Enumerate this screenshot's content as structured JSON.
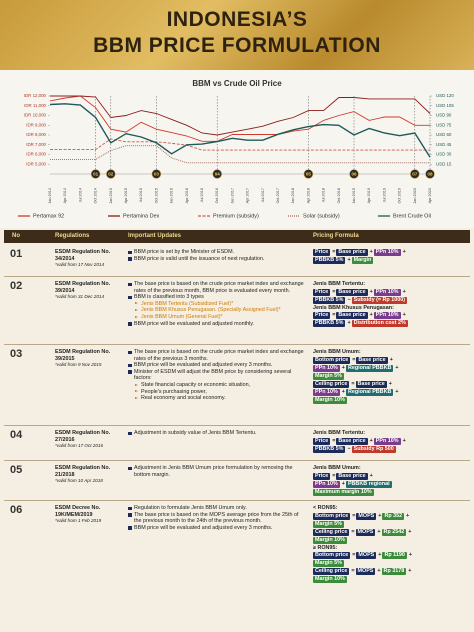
{
  "header": {
    "title_line1": "INDONESIA’S",
    "title_line2": "BBM PRICE FORMULATION"
  },
  "chart_data": {
    "type": "line",
    "title": "BBM vs Crude Oil Price",
    "categories": [
      "Jan 2014",
      "Apr 2014",
      "Jul 2014",
      "Oct 2014",
      "Jan 2015",
      "Apr 2015",
      "Jul 2015",
      "Oct 2015",
      "Jan 2016",
      "Apr 2016",
      "Jul 2016",
      "Oct 2016",
      "Jan 2017",
      "Apr 2017",
      "Jul 2017",
      "Oct 2017",
      "Jan 2018",
      "Apr 2018",
      "Jul 2018",
      "Oct 2018",
      "Jan 2019",
      "Apr 2019",
      "Jul 2019",
      "Oct 2019",
      "Jan 2020",
      "Apr 2020"
    ],
    "series": [
      {
        "name": "Pertamax 92",
        "color": "#d23a2c",
        "dash": "solid",
        "values": [
          11500,
          11800,
          12000,
          10800,
          8600,
          8300,
          9300,
          8600,
          8250,
          7900,
          7350,
          7350,
          8050,
          8050,
          8050,
          8050,
          8400,
          8600,
          9500,
          10000,
          10400,
          9500,
          9850,
          9850,
          9000,
          9000
        ]
      },
      {
        "name": "Pertamina Dex",
        "color": "#8a1c1c",
        "dash": "solid",
        "values": [
          12000,
          12000,
          12000,
          11900,
          9800,
          10000,
          10500,
          10200,
          9600,
          9000,
          8200,
          8000,
          8300,
          8600,
          8900,
          9400,
          9800,
          10500,
          10500,
          11850,
          11850,
          11700,
          11700,
          11700,
          11700,
          10200
        ]
      },
      {
        "name": "Premium (subsidy)",
        "color": "#c85a50",
        "dash": "dashed",
        "values": [
          6500,
          6500,
          6500,
          6500,
          7600,
          7300,
          7300,
          7300,
          7150,
          6950,
          6450,
          6450,
          6450,
          6450,
          6450,
          6450,
          6450,
          6450,
          6450,
          6450,
          6450,
          6450,
          6450,
          6450,
          6450,
          6450
        ]
      },
      {
        "name": "Solar (subsidy)",
        "color": "#a8605a",
        "dash": "dotted",
        "values": [
          5500,
          5500,
          5500,
          5500,
          6400,
          6900,
          6900,
          6900,
          5650,
          5150,
          5150,
          5150,
          5150,
          5150,
          5150,
          5150,
          5150,
          5150,
          5150,
          5150,
          5150,
          5150,
          5150,
          5150,
          5150,
          5150
        ]
      },
      {
        "name": "Brent Crude Oil",
        "color": "#1d5a5a",
        "dash": "solid",
        "axis": "y2",
        "values": [
          107,
          108,
          106,
          87,
          48,
          62,
          57,
          48,
          31,
          45,
          46,
          50,
          55,
          52,
          52,
          61,
          68,
          73,
          76,
          75,
          60,
          70,
          63,
          59,
          63,
          26
        ]
      }
    ],
    "ylim": [
      4000,
      12000
    ],
    "yticks": [
      {
        "value": 12000,
        "label": "IDR 12,000"
      },
      {
        "value": 11000,
        "label": "IDR 11,000"
      },
      {
        "value": 10000,
        "label": "IDR 10,000"
      },
      {
        "value": 9000,
        "label": "IDR 9,000"
      },
      {
        "value": 8000,
        "label": "IDR 8,000"
      },
      {
        "value": 7000,
        "label": "IDR 7,000"
      },
      {
        "value": 6000,
        "label": "IDR 6,000"
      },
      {
        "value": 5000,
        "label": "IDR 5,000"
      }
    ],
    "y2lim": [
      0,
      120
    ],
    "y2ticks": [
      {
        "value": 120,
        "label": "USD 120"
      },
      {
        "value": 105,
        "label": "USD 105"
      },
      {
        "value": 90,
        "label": "USD 90"
      },
      {
        "value": 75,
        "label": "USD 75"
      },
      {
        "value": 60,
        "label": "USD 60"
      },
      {
        "value": 45,
        "label": "USD 45"
      },
      {
        "value": 30,
        "label": "USD 30"
      },
      {
        "value": 15,
        "label": "USD 15"
      }
    ],
    "markers": [
      {
        "label": "01",
        "x": "Oct 2014"
      },
      {
        "label": "02",
        "x": "Jan 2015"
      },
      {
        "label": "03",
        "x": "Oct 2015"
      },
      {
        "label": "04",
        "x": "Oct 2016"
      },
      {
        "label": "05",
        "x": "Apr 2018"
      },
      {
        "label": "06",
        "x": "Jan 2019"
      },
      {
        "label": "07",
        "x": "Jan 2020"
      },
      {
        "label": "08",
        "x": "Apr 2020"
      }
    ],
    "grid": false,
    "legend": "bottom"
  },
  "table": {
    "columns": [
      "No",
      "Regulations",
      "Important Updates",
      "Pricing Formula"
    ],
    "rows": [
      {
        "no": "01",
        "regulation": "ESDM Regulation No. 34/2014",
        "valid": "*valid from 17 Nov 2014",
        "updates": [
          {
            "text": "BBM price is set by the Minister of ESDM."
          },
          {
            "text": "BBM price is valid until the issuance of next regulation."
          }
        ],
        "formula": [
          {
            "lines": [
              [
                {
                  "text": "Price",
                  "color": "#1d2b5a"
                },
                "=",
                {
                  "text": "Base price",
                  "color": "#1d2b5a"
                },
                "+",
                {
                  "text": "PPn 10%",
                  "color": "#7a3c8c"
                },
                "+"
              ],
              [
                {
                  "text": "PBBKB 5%",
                  "color": "#1d2b5a"
                },
                "+",
                {
                  "text": "Margin",
                  "color": "#3c8c3c"
                }
              ]
            ]
          }
        ]
      },
      {
        "no": "02",
        "regulation": "ESDM Regulation No. 39/2014",
        "valid": "*valid from 31 Dec 2014",
        "updates": [
          {
            "text": "The base price is based on the crude price market index and exchange rates of the previous month, BBM price is evaluated every month."
          },
          {
            "text": "BBM is classified into 3 types",
            "sub_color": "#d07a00",
            "sub": [
              "Jenis BBM Tertentu (Subsidized Fuel)*",
              "Jenis BBM Khusus Penugasan. (Specially Assigned Fuel)*",
              "Jenis BBM Umum (General Fuel)*"
            ]
          },
          {
            "text": "BBM price will be evaluated and adjusted monthly."
          }
        ],
        "formula": [
          {
            "heading": "Jenis BBM Tertentu:",
            "lines": [
              [
                {
                  "text": "Price",
                  "color": "#1d2b5a"
                },
                "=",
                {
                  "text": "Base price",
                  "color": "#1d2b5a"
                },
                "+",
                {
                  "text": "PPn 10%",
                  "color": "#7a3c8c"
                },
                "+"
              ],
              [
                {
                  "text": "PBBKB 5%",
                  "color": "#1d2b5a"
                },
                "−",
                {
                  "text": "Subsidy (= Rp 1000)",
                  "color": "#c0392b"
                }
              ]
            ]
          },
          {
            "heading": "Jenis BBM Khusus Penugasan:",
            "lines": [
              [
                {
                  "text": "Price",
                  "color": "#1d2b5a"
                },
                "=",
                {
                  "text": "Base price",
                  "color": "#1d2b5a"
                },
                "+",
                {
                  "text": "PPn 10%",
                  "color": "#7a3c8c"
                },
                "+"
              ],
              [
                {
                  "text": "PBBKB 5%",
                  "color": "#1d2b5a"
                },
                "+",
                {
                  "text": "Distribution cost 2%",
                  "color": "#c0392b"
                }
              ]
            ]
          }
        ]
      },
      {
        "no": "03",
        "regulation": "ESDM Regulation No. 39/2015",
        "valid": "*valid from 9 Nov 2015",
        "updates": [
          {
            "text": "The base price is based on the crude price market index and exchange rates of the previous 3 months."
          },
          {
            "text": "BBM price will be evaluated and adjusted every 3 months."
          },
          {
            "text": "Minister of ESDM will adjust the BBM price by considering several factors:",
            "sub_color": "#222222",
            "sub": [
              "State financial capacity or economic situation,",
              "People's purchasing power,",
              "Real economy and social economy."
            ]
          }
        ],
        "formula": [
          {
            "heading": "Jenis BBM Umum:",
            "lines": [
              [
                {
                  "text": "Bottom price",
                  "color": "#1d2b5a"
                },
                "=",
                {
                  "text": "Base price",
                  "color": "#1d2b5a"
                },
                "+"
              ],
              [
                {
                  "text": "PPn 10%",
                  "color": "#7a3c8c"
                },
                "+",
                {
                  "text": "Regional PBBKB",
                  "color": "#1f6f70"
                },
                "+"
              ],
              [
                {
                  "text": "Margin 5%",
                  "color": "#3c8c3c"
                }
              ],
              [
                {
                  "text": "Ceiling price",
                  "color": "#1d2b5a"
                },
                "=",
                {
                  "text": "Base price",
                  "color": "#1d2b5a"
                },
                "+"
              ],
              [
                {
                  "text": "PPn 10%",
                  "color": "#7a3c8c"
                },
                "+",
                {
                  "text": "Regional PBBKB",
                  "color": "#1f6f70"
                },
                "+"
              ],
              [
                {
                  "text": "Margin 10%",
                  "color": "#3c8c3c"
                }
              ]
            ]
          }
        ]
      },
      {
        "no": "04",
        "regulation": "ESDM Regulation No. 27/2016",
        "valid": "*valid from 17 Oct 2016",
        "updates": [
          {
            "text": "Adjustment in subsidy value of Jenis BBM Tertentu."
          }
        ],
        "formula": [
          {
            "heading": "Jenis BBM Tertentu:",
            "lines": [
              [
                {
                  "text": "Price",
                  "color": "#1d2b5a"
                },
                "=",
                {
                  "text": "Base price",
                  "color": "#1d2b5a"
                },
                "+",
                {
                  "text": "PPn 10%",
                  "color": "#7a3c8c"
                },
                "+"
              ],
              [
                {
                  "text": "PBBKB 5%",
                  "color": "#1d2b5a"
                },
                "−",
                {
                  "text": "Subsidy Rp 500",
                  "color": "#c0392b"
                }
              ]
            ]
          }
        ]
      },
      {
        "no": "05",
        "regulation": "ESDM Regulation No. 21/2018",
        "valid": "*valid from 10 Apr 2018",
        "updates": [
          {
            "text": "Adjustment in Jenis BBM Umum price formulation by removing the bottom margin."
          }
        ],
        "formula": [
          {
            "heading": "Jenis BBM Umum:",
            "lines": [
              [
                {
                  "text": "Price",
                  "color": "#1d2b5a"
                },
                "=",
                {
                  "text": "Base price",
                  "color": "#1d2b5a"
                },
                "+"
              ],
              [
                {
                  "text": "PPn 10%",
                  "color": "#7a3c8c"
                },
                "+",
                {
                  "text": "PBBKB regional",
                  "color": "#1f6f70"
                }
              ],
              [
                {
                  "text": "Maximum margin 10%",
                  "color": "#3c8c3c"
                }
              ]
            ]
          }
        ]
      },
      {
        "no": "06",
        "regulation": "ESDM Decree No. 19K/MEM/2019",
        "valid": "*valid from 1 Feb 2019",
        "updates": [
          {
            "text": "Regulation to formulate Jenis BBM Umum only."
          },
          {
            "text": "The base price is based on the MOPS average price from the 25th of the previous month to the 24th of the previous month."
          },
          {
            "text": "BBM price will be evaluated and adjusted every 3 months."
          }
        ],
        "formula": [
          {
            "heading": "< RON95:",
            "lines": [
              [
                {
                  "text": "Bottom price",
                  "color": "#1d2b5a"
                },
                "=",
                {
                  "text": "MOPS",
                  "color": "#1d2b5a"
                },
                "+",
                {
                  "text": "Rp 352",
                  "color": "#3c8c3c"
                },
                "+"
              ],
              [
                {
                  "text": "Margin 5%",
                  "color": "#3c8c3c"
                }
              ],
              [
                {
                  "text": "Ceiling price",
                  "color": "#1d2b5a"
                },
                "=",
                {
                  "text": "MOPS",
                  "color": "#1d2b5a"
                },
                "+",
                {
                  "text": "Rp 2542",
                  "color": "#3c8c3c"
                },
                "+"
              ],
              [
                {
                  "text": "Margin 10%",
                  "color": "#3c8c3c"
                }
              ]
            ]
          },
          {
            "heading": "≥ RON95:",
            "lines": [
              [
                {
                  "text": "Bottom price",
                  "color": "#1d2b5a"
                },
                "=",
                {
                  "text": "MOPS",
                  "color": "#1d2b5a"
                },
                "+",
                {
                  "text": "Rp 1190",
                  "color": "#3c8c3c"
                },
                "+"
              ],
              [
                {
                  "text": "Margin 5%",
                  "color": "#3c8c3c"
                }
              ],
              [
                {
                  "text": "Ceiling price",
                  "color": "#1d2b5a"
                },
                "=",
                {
                  "text": "MOPS",
                  "color": "#1d2b5a"
                },
                "+",
                {
                  "text": "Rp 3178",
                  "color": "#3c8c3c"
                },
                "+"
              ],
              [
                {
                  "text": "Margin 10%",
                  "color": "#3c8c3c"
                }
              ]
            ]
          }
        ]
      }
    ]
  }
}
